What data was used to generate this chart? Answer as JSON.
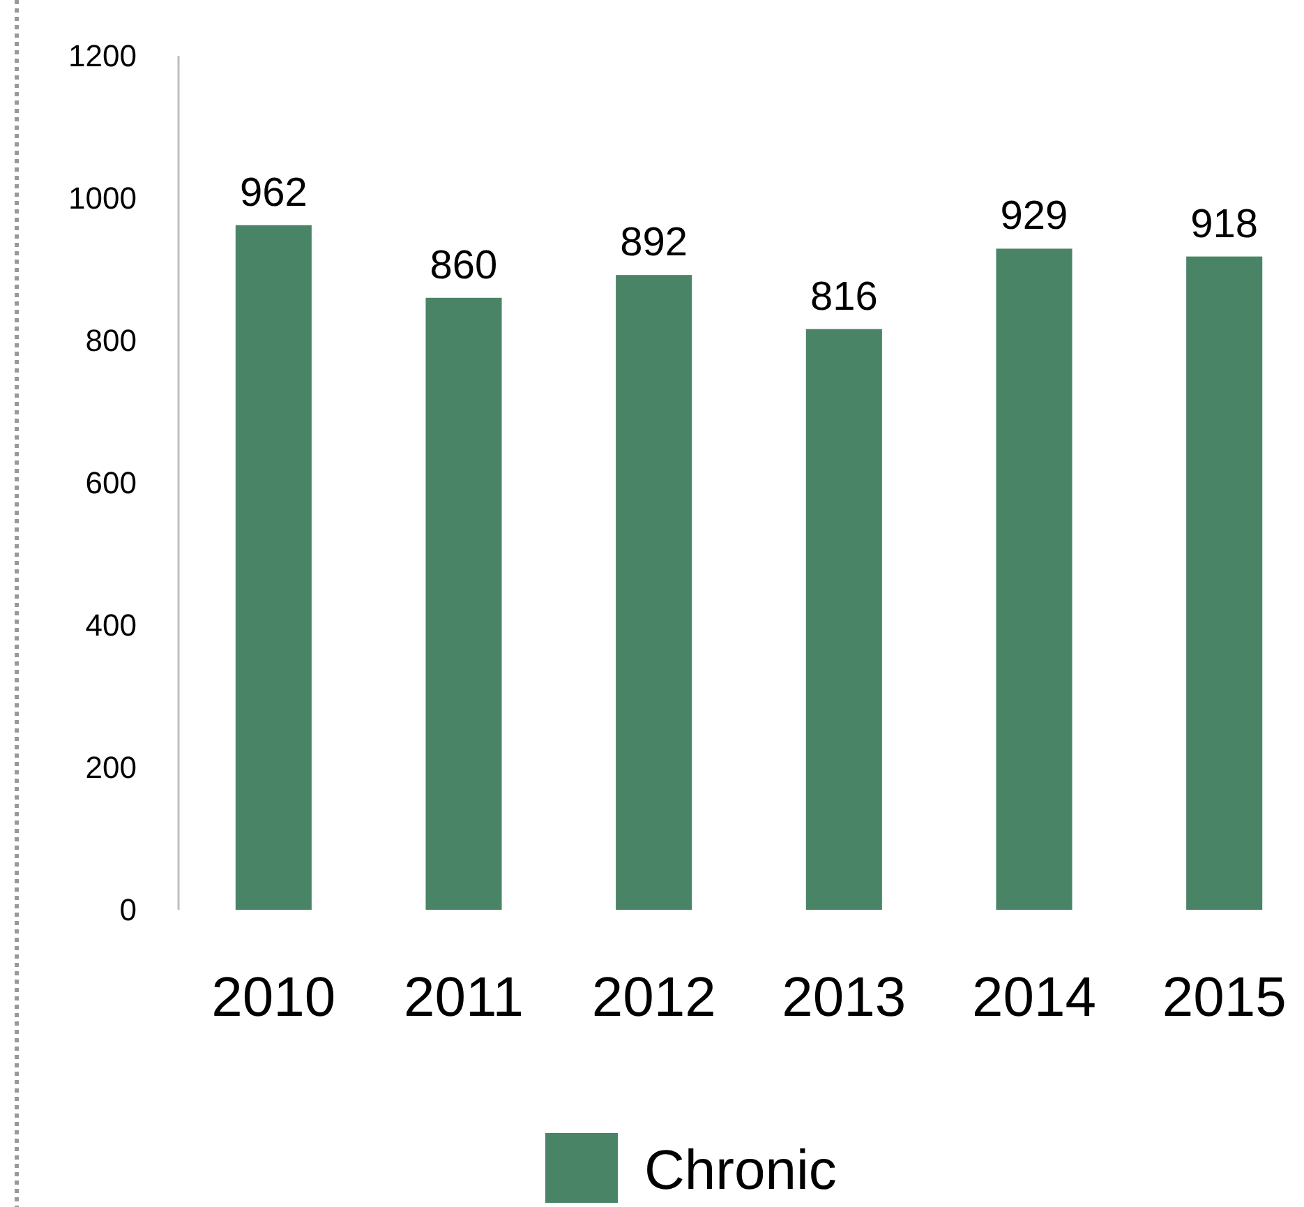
{
  "chart_data": {
    "type": "bar",
    "categories": [
      "2010",
      "2011",
      "2012",
      "2013",
      "2014",
      "2015"
    ],
    "series": [
      {
        "name": "Chronic",
        "color": "#4a8466",
        "values": [
          962,
          860,
          892,
          816,
          929,
          918
        ]
      }
    ],
    "ylim": [
      0,
      1200
    ],
    "yticks": [
      0,
      200,
      400,
      600,
      800,
      1000,
      1200
    ],
    "grid": false,
    "legend": "bottom",
    "data_labels": true
  }
}
